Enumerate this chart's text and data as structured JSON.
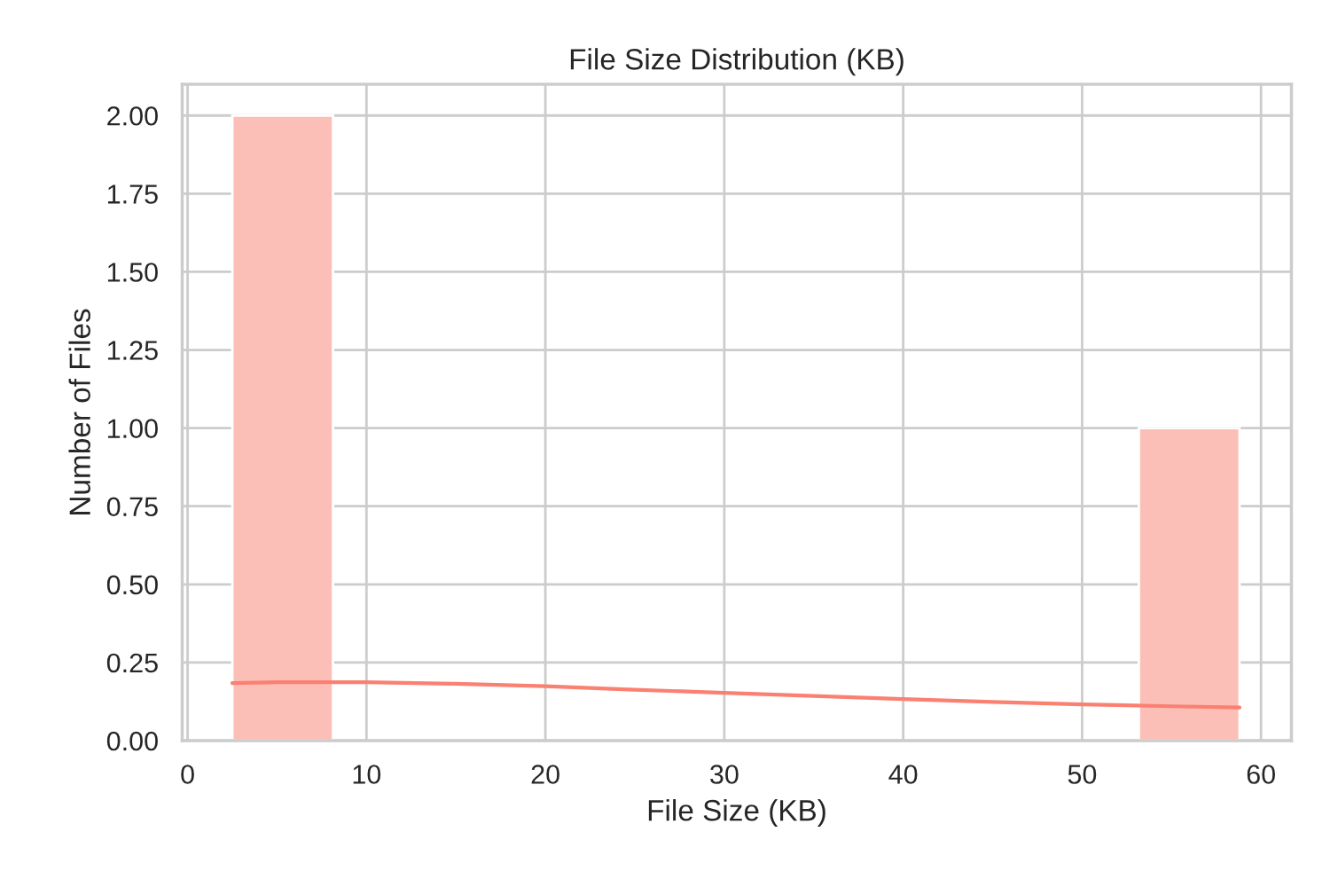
{
  "chart_data": {
    "type": "histogram",
    "title": "File Size Distribution (KB)",
    "xlabel": "File Size (KB)",
    "ylabel": "Number of Files",
    "series": [
      {
        "color": "#fcbfb8",
        "bins": [
          2.5,
          8.13,
          13.76,
          19.39,
          25.02,
          30.65,
          36.28,
          41.91,
          47.54,
          53.17,
          58.8
        ],
        "values": [
          2,
          0,
          0,
          0,
          0,
          0,
          0,
          0,
          0,
          1
        ]
      },
      {
        "type": "line",
        "color": "#fa8072",
        "x": [
          2.5,
          5,
          10,
          15,
          20,
          25,
          30,
          35,
          40,
          45,
          50,
          55,
          58.8
        ],
        "values": [
          0.184,
          0.187,
          0.187,
          0.182,
          0.174,
          0.163,
          0.153,
          0.143,
          0.133,
          0.124,
          0.116,
          0.11,
          0.106
        ]
      }
    ],
    "xlim": [
      -0.3,
      61.7
    ],
    "xticks": [
      0,
      10,
      20,
      30,
      40,
      50,
      60
    ],
    "ylim": [
      0,
      2.1
    ],
    "yticks": [
      {
        "value": 0,
        "label": "0.00"
      },
      {
        "value": 0.25,
        "label": "0.25"
      },
      {
        "value": 0.5,
        "label": "0.50"
      },
      {
        "value": 0.75,
        "label": "0.75"
      },
      {
        "value": 1,
        "label": "1.00"
      },
      {
        "value": 1.25,
        "label": "1.25"
      },
      {
        "value": 1.5,
        "label": "1.50"
      },
      {
        "value": 1.75,
        "label": "1.75"
      },
      {
        "value": 2,
        "label": "2.00"
      }
    ],
    "grid": true,
    "line_style": "solid"
  }
}
